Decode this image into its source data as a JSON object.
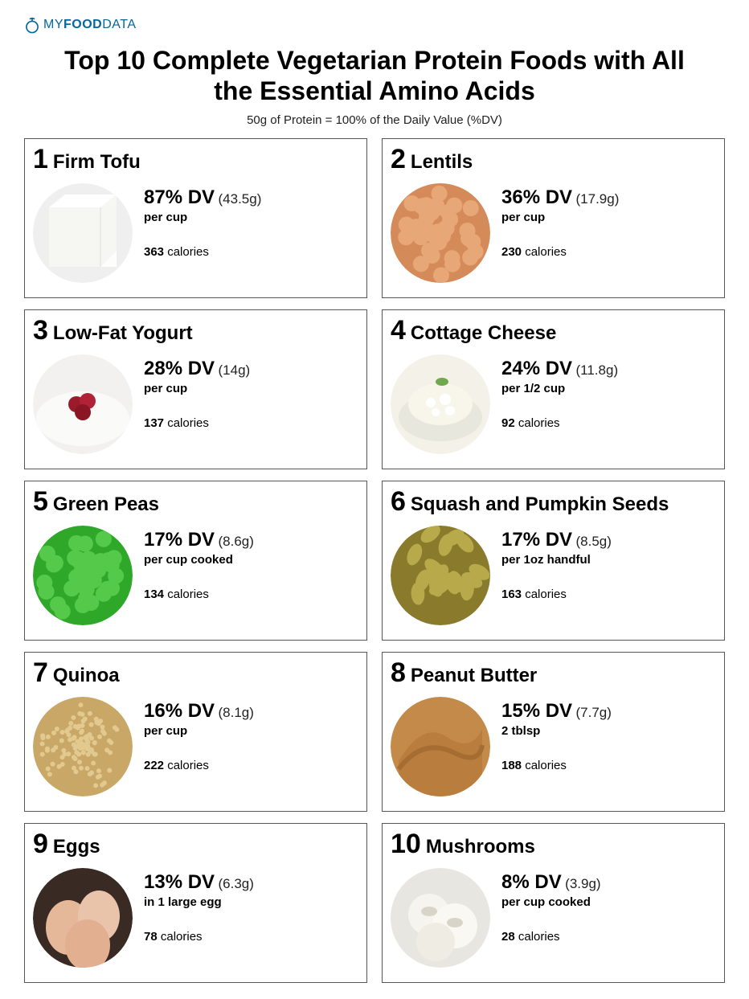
{
  "brand": {
    "my": "MY",
    "food": "FOOD",
    "data": "DATA",
    "color": "#04689e"
  },
  "title": "Top 10 Complete Vegetarian Protein Foods with All the Essential Amino Acids",
  "subtitle": "50g of Protein = 100% of the Daily Value (%DV)",
  "calories_label": "calories",
  "cards": [
    {
      "rank": "1",
      "name": "Firm Tofu",
      "dv": "87% DV",
      "grams": "(43.5g)",
      "serving": "per cup",
      "calories": "363",
      "thumb": {
        "bg": "#efefef",
        "shape": "tofu"
      }
    },
    {
      "rank": "2",
      "name": "Lentils",
      "dv": "36% DV",
      "grams": "(17.9g)",
      "serving": "per cup",
      "calories": "230",
      "thumb": {
        "bg": "#d58a5a",
        "shape": "dots",
        "dot": "#e8a776"
      }
    },
    {
      "rank": "3",
      "name": "Low-Fat Yogurt",
      "dv": "28% DV",
      "grams": "(14g)",
      "serving": "per cup",
      "calories": "137",
      "thumb": {
        "bg": "#f2f1ef",
        "shape": "berries"
      }
    },
    {
      "rank": "4",
      "name": "Cottage Cheese",
      "dv": "24% DV",
      "grams": "(11.8g)",
      "serving": "per 1/2 cup",
      "calories": "92",
      "thumb": {
        "bg": "#f4f2e8",
        "shape": "cottage"
      }
    },
    {
      "rank": "5",
      "name": "Green Peas",
      "dv": "17% DV",
      "grams": "(8.6g)",
      "serving": "per cup cooked",
      "calories": "134",
      "thumb": {
        "bg": "#2fa82a",
        "shape": "dots",
        "dot": "#54c94a"
      }
    },
    {
      "rank": "6",
      "name": "Squash and Pumpkin Seeds",
      "dv": "17% DV",
      "grams": "(8.5g)",
      "serving": "per 1oz handful",
      "calories": "163",
      "thumb": {
        "bg": "#8a7a2b",
        "shape": "seeds",
        "dot": "#b8aa4a"
      }
    },
    {
      "rank": "7",
      "name": "Quinoa",
      "dv": "16% DV",
      "grams": "(8.1g)",
      "serving": "per cup",
      "calories": "222",
      "thumb": {
        "bg": "#c9a767",
        "shape": "grain",
        "dot": "#e2c98f"
      }
    },
    {
      "rank": "8",
      "name": "Peanut Butter",
      "dv": "15% DV",
      "grams": "(7.7g)",
      "serving": "2 tblsp",
      "calories": "188",
      "thumb": {
        "bg": "#c48a4a",
        "shape": "swirl"
      }
    },
    {
      "rank": "9",
      "name": "Eggs",
      "dv": "13% DV",
      "grams": "(6.3g)",
      "serving": "in 1 large egg",
      "calories": "78",
      "thumb": {
        "bg": "#3a2a24",
        "shape": "eggs"
      }
    },
    {
      "rank": "10",
      "name": "Mushrooms",
      "dv": "8% DV",
      "grams": "(3.9g)",
      "serving": "per cup cooked",
      "calories": "28",
      "thumb": {
        "bg": "#e8e6e0",
        "shape": "mushrooms"
      }
    }
  ]
}
